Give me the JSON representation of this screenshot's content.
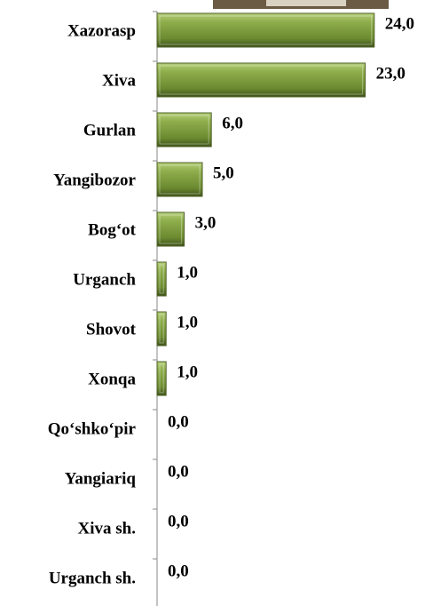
{
  "chart_data": {
    "type": "bar",
    "orientation": "horizontal",
    "categories": [
      "Xazorasp",
      "Xiva",
      "Gurlan",
      "Yangibozor",
      "Bog‘ot",
      "Urganch",
      "Shovot",
      "Xonqa",
      "Qo‘shko‘pir",
      "Yangiariq",
      "Xiva sh.",
      "Urganch sh."
    ],
    "values": [
      24,
      23,
      6,
      5,
      3,
      1,
      1,
      1,
      0,
      0,
      0,
      0
    ],
    "value_labels": [
      "24,0",
      "23,0",
      "6,0",
      "5,0",
      "3,0",
      "1,0",
      "1,0",
      "1,0",
      "0,0",
      "0,0",
      "0,0",
      "0,0"
    ],
    "color": "#77933c",
    "xlim": [
      0,
      25
    ]
  }
}
